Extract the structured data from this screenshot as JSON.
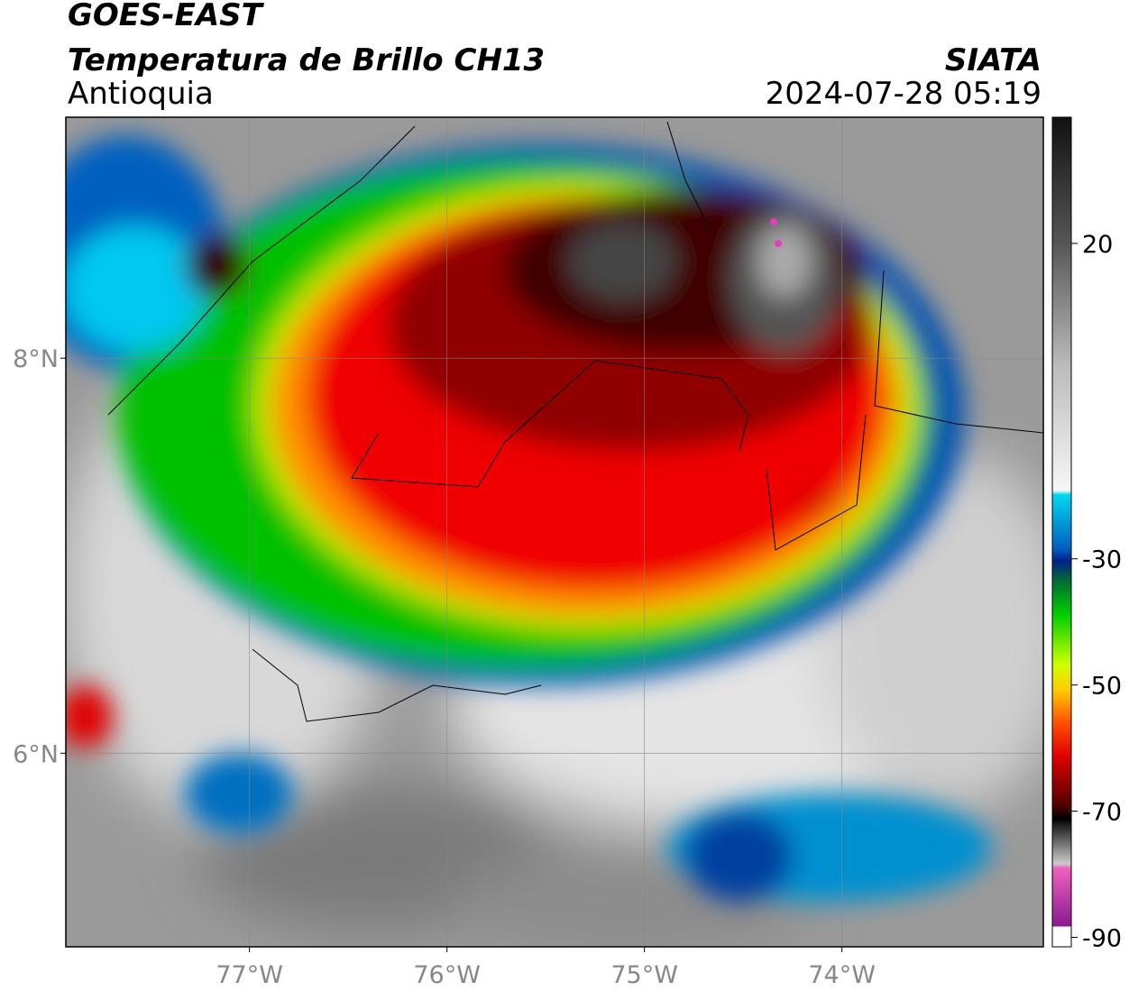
{
  "header": {
    "title": "GOES-EAST",
    "subtitle": "Temperatura de Brillo CH13",
    "region": "Antioquia",
    "source": "SIATA",
    "datetime": "2024-07-28 05:19"
  },
  "map": {
    "xlim": [
      -77.93,
      -72.98
    ],
    "ylim": [
      5.02,
      9.22
    ],
    "xticks": [
      {
        "value": -77,
        "label": "77°W"
      },
      {
        "value": -76,
        "label": "76°W"
      },
      {
        "value": -75,
        "label": "75°W"
      },
      {
        "value": -74,
        "label": "74°W"
      }
    ],
    "yticks": [
      {
        "value": 8,
        "label": "8°N"
      },
      {
        "value": 6,
        "label": "6°N"
      }
    ],
    "grid": true
  },
  "colorbar": {
    "clim": [
      -91.5,
      40
    ],
    "ticks": [
      20,
      -30,
      -50,
      -70,
      -90
    ]
  }
}
